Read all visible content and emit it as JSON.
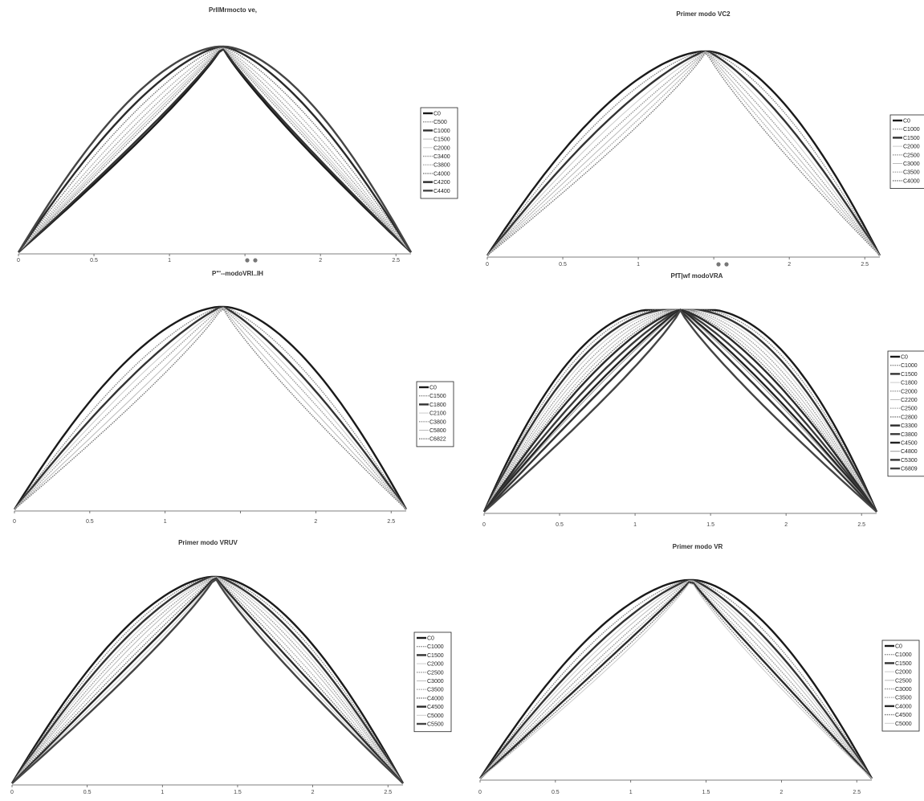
{
  "chart_data": [
    {
      "type": "line",
      "title": "PrllMrmocto ve,",
      "xticks": [
        "0",
        "0.5",
        "1",
        "",
        "2",
        "2.5"
      ],
      "xlim": [
        0,
        2.6
      ],
      "ylim": [
        0,
        1
      ],
      "legend_position": "right",
      "series": [
        {
          "name": "C0",
          "style": "thick",
          "color": "#1a1a1a",
          "shape": 0.0
        },
        {
          "name": "C500",
          "style": "dotted",
          "color": "#888888",
          "shape": 0.15
        },
        {
          "name": "C1000",
          "style": "thick",
          "color": "#333333",
          "shape": 0.05
        },
        {
          "name": "C1500",
          "style": "thin",
          "color": "#bbbbbb",
          "shape": 0.2
        },
        {
          "name": "C2000",
          "style": "thin",
          "color": "#cccccc",
          "shape": 0.25
        },
        {
          "name": "C3400",
          "style": "dotted",
          "color": "#999999",
          "shape": 0.32
        },
        {
          "name": "C3800",
          "style": "dotted",
          "color": "#aaaaaa",
          "shape": 0.4
        },
        {
          "name": "C4000",
          "style": "dotted",
          "color": "#777777",
          "shape": 0.5
        },
        {
          "name": "C4200",
          "style": "thick",
          "color": "#2a2a2a",
          "shape": 0.6
        },
        {
          "name": "C4400",
          "style": "thick",
          "color": "#444444",
          "shape": 0.7
        }
      ]
    },
    {
      "type": "line",
      "title": "Primer modo VC2",
      "xticks": [
        "0",
        "0.5",
        "1",
        "",
        "2",
        "2.5"
      ],
      "xlim": [
        0,
        2.6
      ],
      "ylim": [
        0,
        1
      ],
      "legend_position": "right",
      "series": [
        {
          "name": "C0",
          "style": "thick",
          "color": "#1a1a1a",
          "shape": 0.7
        },
        {
          "name": "C1000",
          "style": "dotted",
          "color": "#888888",
          "shape": 0.6
        },
        {
          "name": "C1500",
          "style": "thick",
          "color": "#333333",
          "shape": 0.5
        },
        {
          "name": "C2000",
          "style": "thin",
          "color": "#cccccc",
          "shape": 0.4
        },
        {
          "name": "C2500",
          "style": "dotted",
          "color": "#999999",
          "shape": 0.3
        },
        {
          "name": "C3000",
          "style": "thin",
          "color": "#bbbbbb",
          "shape": 0.2
        },
        {
          "name": "C3500",
          "style": "dotted",
          "color": "#aaaaaa",
          "shape": 0.1
        },
        {
          "name": "C4000",
          "style": "dotted",
          "color": "#777777",
          "shape": 0.0
        }
      ]
    },
    {
      "type": "line",
      "title": "P\"'--modoVRI..IH",
      "xticks": [
        "0",
        "0.5",
        "1",
        "",
        "2",
        "2.5"
      ],
      "xlim": [
        0,
        2.6
      ],
      "ylim": [
        0,
        1
      ],
      "legend_position": "right",
      "series": [
        {
          "name": "C0",
          "style": "thick",
          "color": "#1a1a1a",
          "shape": 0.7
        },
        {
          "name": "C1500",
          "style": "dotted",
          "color": "#888888",
          "shape": 0.55
        },
        {
          "name": "C1800",
          "style": "thick",
          "color": "#333333",
          "shape": 0.45
        },
        {
          "name": "C2100",
          "style": "thin",
          "color": "#cccccc",
          "shape": 0.35
        },
        {
          "name": "C3800",
          "style": "dotted",
          "color": "#999999",
          "shape": 0.25
        },
        {
          "name": "C5800",
          "style": "thin",
          "color": "#bbbbbb",
          "shape": 0.12
        },
        {
          "name": "C6822",
          "style": "dotted",
          "color": "#777777",
          "shape": 0.0
        }
      ]
    },
    {
      "type": "line",
      "title": "PfT|wf modoVRA",
      "xticks": [
        "0",
        "0.5",
        "1",
        "1.5",
        "2",
        "2.5"
      ],
      "xlim": [
        0,
        2.6
      ],
      "ylim": [
        0,
        1
      ],
      "legend_position": "right",
      "series": [
        {
          "name": "C0",
          "style": "thick",
          "color": "#1a1a1a",
          "shape": 0.95
        },
        {
          "name": "C1000",
          "style": "dotted",
          "color": "#888888",
          "shape": 0.9
        },
        {
          "name": "C1500",
          "style": "thick",
          "color": "#333333",
          "shape": 0.85
        },
        {
          "name": "C1800",
          "style": "thin",
          "color": "#cccccc",
          "shape": 0.8
        },
        {
          "name": "C2000",
          "style": "dotted",
          "color": "#999999",
          "shape": 0.75
        },
        {
          "name": "C2200",
          "style": "thin",
          "color": "#bbbbbb",
          "shape": 0.7
        },
        {
          "name": "C2500",
          "style": "dotted",
          "color": "#aaaaaa",
          "shape": 0.65
        },
        {
          "name": "C2800",
          "style": "dotted",
          "color": "#777777",
          "shape": 0.6
        },
        {
          "name": "C3300",
          "style": "thick",
          "color": "#2a2a2a",
          "shape": 0.55
        },
        {
          "name": "C3800",
          "style": "thick",
          "color": "#3a3a3a",
          "shape": 0.45
        },
        {
          "name": "C4500",
          "style": "thick",
          "color": "#222222",
          "shape": 0.35
        },
        {
          "name": "C4800",
          "style": "thin",
          "color": "#999999",
          "shape": 0.3
        },
        {
          "name": "C5300",
          "style": "thick",
          "color": "#333333",
          "shape": 0.2
        },
        {
          "name": "C6809",
          "style": "thick",
          "color": "#444444",
          "shape": 0.0
        }
      ]
    },
    {
      "type": "line",
      "title": "Primer modo VRUV",
      "xticks": [
        "0",
        "0.5",
        "1",
        "1.5",
        "2",
        "2.5"
      ],
      "xlim": [
        0,
        2.6
      ],
      "ylim": [
        0,
        1
      ],
      "legend_position": "right",
      "series": [
        {
          "name": "C0",
          "style": "thick",
          "color": "#1a1a1a",
          "shape": 0.7
        },
        {
          "name": "C1000",
          "style": "dotted",
          "color": "#888888",
          "shape": 0.64
        },
        {
          "name": "C1500",
          "style": "thick",
          "color": "#333333",
          "shape": 0.58
        },
        {
          "name": "C2000",
          "style": "thin",
          "color": "#cccccc",
          "shape": 0.52
        },
        {
          "name": "C2500",
          "style": "dotted",
          "color": "#999999",
          "shape": 0.46
        },
        {
          "name": "C3000",
          "style": "thin",
          "color": "#bbbbbb",
          "shape": 0.4
        },
        {
          "name": "C3500",
          "style": "dotted",
          "color": "#aaaaaa",
          "shape": 0.32
        },
        {
          "name": "C4000",
          "style": "dotted",
          "color": "#777777",
          "shape": 0.24
        },
        {
          "name": "C4500",
          "style": "thick",
          "color": "#2a2a2a",
          "shape": 0.16
        },
        {
          "name": "C5000",
          "style": "thin",
          "color": "#cccccc",
          "shape": 0.08
        },
        {
          "name": "C5500",
          "style": "thick",
          "color": "#444444",
          "shape": 0.0
        }
      ]
    },
    {
      "type": "line",
      "title": "Primer modo VR",
      "xticks": [
        "0",
        "0.5",
        "1",
        "1.5",
        "2",
        "2.5"
      ],
      "xlim": [
        0,
        2.6
      ],
      "ylim": [
        0,
        1
      ],
      "legend_position": "right",
      "series": [
        {
          "name": "C0",
          "style": "thick",
          "color": "#1a1a1a",
          "shape": 0.7
        },
        {
          "name": "C1000",
          "style": "dotted",
          "color": "#888888",
          "shape": 0.6
        },
        {
          "name": "C1500",
          "style": "thick",
          "color": "#333333",
          "shape": 0.52
        },
        {
          "name": "C2000",
          "style": "thin",
          "color": "#cccccc",
          "shape": 0.45
        },
        {
          "name": "C2500",
          "style": "thin",
          "color": "#bbbbbb",
          "shape": 0.38
        },
        {
          "name": "C3000",
          "style": "dotted",
          "color": "#999999",
          "shape": 0.3
        },
        {
          "name": "C3500",
          "style": "dotted",
          "color": "#aaaaaa",
          "shape": 0.22
        },
        {
          "name": "C4000",
          "style": "thick",
          "color": "#2a2a2a",
          "shape": 0.15
        },
        {
          "name": "C4500",
          "style": "dotted",
          "color": "#777777",
          "shape": 0.07
        },
        {
          "name": "C5000",
          "style": "thin",
          "color": "#cccccc",
          "shape": 0.0
        }
      ]
    }
  ]
}
